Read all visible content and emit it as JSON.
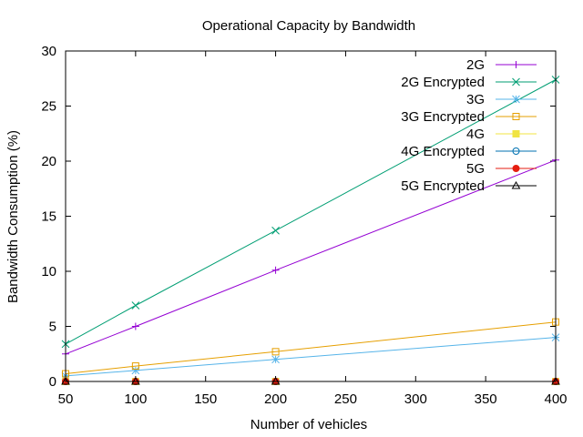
{
  "chart_data": {
    "type": "line",
    "title": "Operational Capacity by Bandwidth",
    "xlabel": "Number of vehicles",
    "ylabel": "Bandwidth Consumption (%)",
    "xlim": [
      50,
      400
    ],
    "ylim": [
      0,
      30
    ],
    "xticks": [
      50,
      100,
      150,
      200,
      250,
      300,
      350,
      400
    ],
    "yticks": [
      0,
      5,
      10,
      15,
      20,
      25,
      30
    ],
    "grid": false,
    "legend_position": "top-right",
    "x": [
      50,
      100,
      200,
      400
    ],
    "series": [
      {
        "name": "2G",
        "values": [
          2.5,
          5.0,
          10.1,
          20.1
        ],
        "color": "#9400d3",
        "marker": "plus"
      },
      {
        "name": "2G Encrypted",
        "values": [
          3.4,
          6.9,
          13.7,
          27.4
        ],
        "color": "#009e73",
        "marker": "cross"
      },
      {
        "name": "3G",
        "values": [
          0.5,
          1.0,
          2.0,
          4.0
        ],
        "color": "#56b4e9",
        "marker": "star"
      },
      {
        "name": "3G Encrypted",
        "values": [
          0.7,
          1.4,
          2.7,
          5.4
        ],
        "color": "#e69f00",
        "marker": "square-open"
      },
      {
        "name": "4G",
        "values": [
          0.0,
          0.0,
          0.0,
          0.0
        ],
        "color": "#f0e442",
        "marker": "square-filled"
      },
      {
        "name": "4G Encrypted",
        "values": [
          0.0,
          0.0,
          0.0,
          0.0
        ],
        "color": "#0072b2",
        "marker": "circle-open"
      },
      {
        "name": "5G",
        "values": [
          0.0,
          0.0,
          0.0,
          0.0
        ],
        "color": "#e51e10",
        "marker": "circle-filled"
      },
      {
        "name": "5G Encrypted",
        "values": [
          0.0,
          0.0,
          0.0,
          0.0
        ],
        "color": "#000000",
        "marker": "triangle-open"
      }
    ]
  }
}
